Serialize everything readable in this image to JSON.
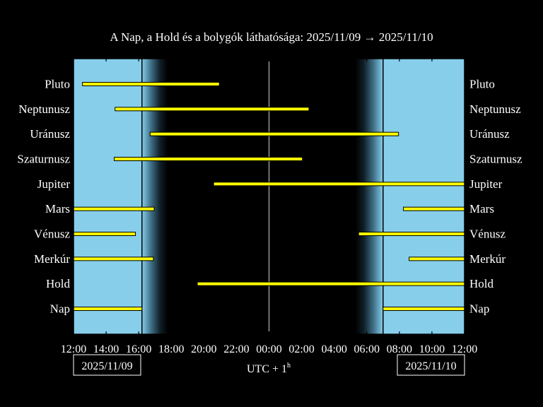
{
  "chart_data": {
    "type": "gantt",
    "title": "A Nap, a Hold és a bolygók láthatósága: 2025/11/09 → 2025/11/10",
    "xlabel": "UTC + 1",
    "xlabel_sup": "h",
    "x_unit": "hours since 2025/11/09 12:00 (UTC+1)",
    "xlim": [
      0,
      24
    ],
    "x_ticks": [
      0,
      2,
      4,
      6,
      8,
      10,
      12,
      14,
      16,
      18,
      20,
      22,
      24
    ],
    "x_tick_labels": [
      "12:00",
      "14:00",
      "16:00",
      "18:00",
      "20:00",
      "22:00",
      "00:00",
      "02:00",
      "04:00",
      "06:00",
      "08:00",
      "10:00",
      "12:00"
    ],
    "date_left": "2025/11/09",
    "date_right": "2025/11/10",
    "midnight": 12,
    "sunset": 4.2,
    "sunrise": 19.0,
    "twilight_evening_end": 5.8,
    "twilight_morning_start": 17.3,
    "colors": {
      "day": "#87ceeb",
      "night": "#000000",
      "bar": "#ffff00",
      "text": "#ffffff"
    },
    "objects": [
      {
        "name": "Pluto",
        "segments": [
          [
            0.55,
            8.95
          ]
        ]
      },
      {
        "name": "Neptunusz",
        "segments": [
          [
            2.55,
            14.45
          ]
        ]
      },
      {
        "name": "Uránusz",
        "segments": [
          [
            4.7,
            19.95
          ]
        ]
      },
      {
        "name": "Szaturnusz",
        "segments": [
          [
            2.5,
            14.05
          ]
        ]
      },
      {
        "name": "Jupiter",
        "segments": [
          [
            8.6,
            24
          ]
        ]
      },
      {
        "name": "Mars",
        "segments": [
          [
            0,
            4.95
          ],
          [
            20.25,
            24
          ]
        ]
      },
      {
        "name": "Vénusz",
        "segments": [
          [
            0,
            3.8
          ],
          [
            17.5,
            24
          ]
        ]
      },
      {
        "name": "Merkúr",
        "segments": [
          [
            0,
            4.9
          ],
          [
            20.6,
            24
          ]
        ]
      },
      {
        "name": "Hold",
        "segments": [
          [
            7.6,
            24
          ]
        ]
      },
      {
        "name": "Nap",
        "segments": [
          [
            0,
            4.2
          ],
          [
            19.0,
            24
          ]
        ]
      }
    ]
  }
}
